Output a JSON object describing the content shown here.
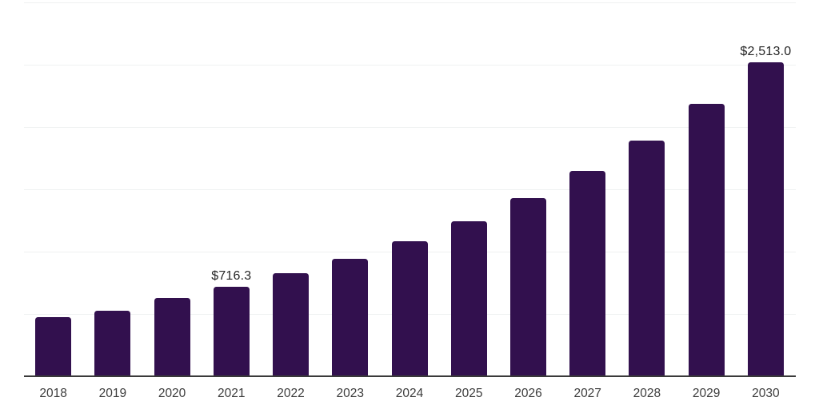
{
  "chart_data": {
    "type": "bar",
    "title": "",
    "xlabel": "",
    "ylabel": "",
    "categories": [
      "2018",
      "2019",
      "2020",
      "2021",
      "2022",
      "2023",
      "2024",
      "2025",
      "2026",
      "2027",
      "2028",
      "2029",
      "2030"
    ],
    "values": [
      473.1,
      524.3,
      625.9,
      716.3,
      821.8,
      939.1,
      1078.3,
      1242.4,
      1424.2,
      1642.3,
      1889.8,
      2183.1,
      2513.0
    ],
    "data_labels": [
      null,
      null,
      null,
      "$716.3",
      null,
      null,
      null,
      null,
      null,
      null,
      null,
      null,
      "$2,513.0"
    ],
    "ylim": [
      0,
      3000
    ],
    "gridline_step": 500,
    "grid": true,
    "legend": false,
    "y_axis_ticks_visible": false,
    "colors": {
      "bar": "#32104e",
      "background": "#ffffff",
      "gridline": "#eff1f1",
      "axis_line": "#3a3a3a",
      "value_label_text": "#262626",
      "x_label_text": "#3d3d3d"
    }
  }
}
